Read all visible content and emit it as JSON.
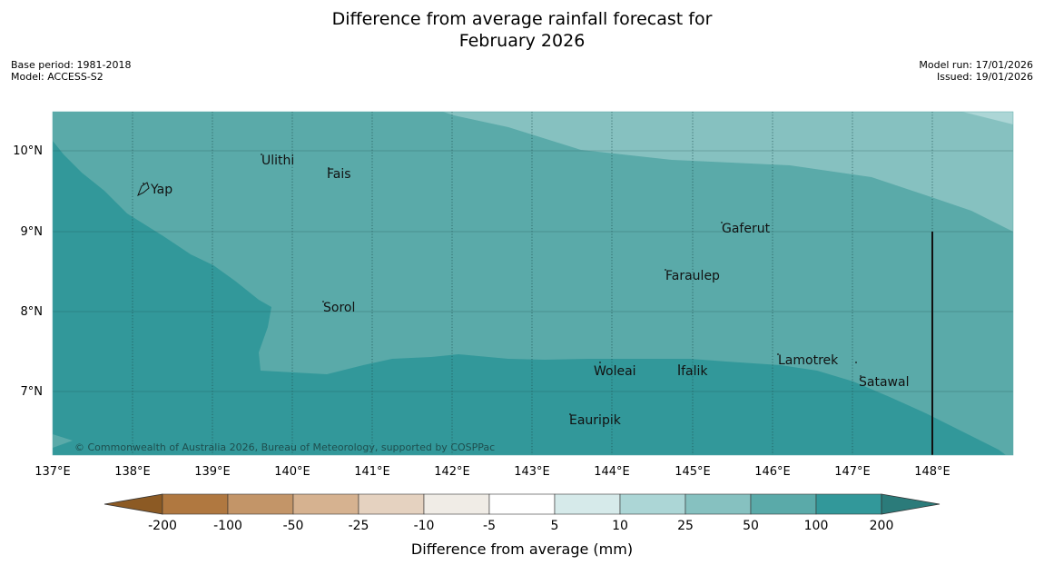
{
  "title": {
    "line1": "Difference from average rainfall forecast for",
    "line2": "February 2026"
  },
  "meta": {
    "base_period": "Base period: 1981-2018",
    "model": "Model: ACCESS-S2",
    "model_run": "Model run: 17/01/2026",
    "issued": "Issued: 19/01/2026"
  },
  "map": {
    "lon_labels": [
      "137°E",
      "138°E",
      "139°E",
      "140°E",
      "141°E",
      "142°E",
      "143°E",
      "144°E",
      "145°E",
      "146°E",
      "147°E",
      "148°E"
    ],
    "lat_labels": [
      "10°N",
      "9°N",
      "8°N",
      "7°N"
    ],
    "places": [
      "Ulithi",
      "Fais",
      "Yap",
      "Gaferut",
      "Faraulep",
      "Sorol",
      "Lamotrek",
      "Woleai",
      "Ifalik",
      "Satawal",
      "Eauripik"
    ],
    "copyright": "© Commonwealth of Australia 2026, Bureau of Meteorology, supported by COSPPac"
  },
  "colorbar": {
    "labels": [
      "-200",
      "-100",
      "-50",
      "-25",
      "-10",
      "-5",
      "5",
      "10",
      "25",
      "50",
      "100",
      "200"
    ],
    "colors": [
      "#8c5a24",
      "#b07840",
      "#c39568",
      "#d6b290",
      "#e5d2c0",
      "#f0ece6",
      "#ffffff",
      "#d6eaea",
      "#acd6d6",
      "#86c1c0",
      "#5aaaa9",
      "#32989a",
      "#2b7b7a"
    ],
    "label": "Difference from average (mm)"
  }
}
